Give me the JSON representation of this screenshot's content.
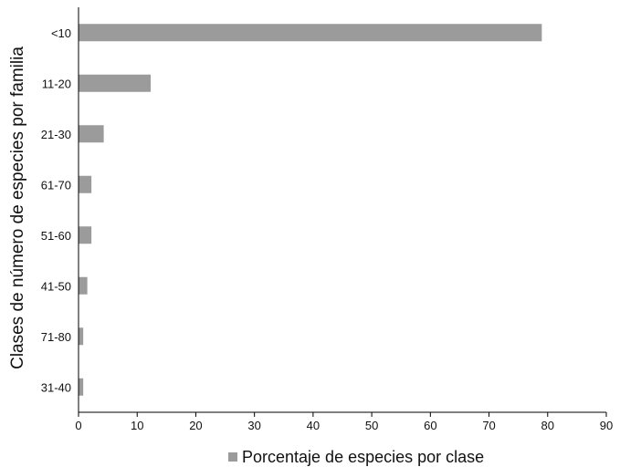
{
  "chart_data": {
    "type": "bar",
    "orientation": "horizontal",
    "categories": [
      "<10",
      "11-20",
      "21-30",
      "61-70",
      "51-60",
      "41-50",
      "71-80",
      "31-40"
    ],
    "series": [
      {
        "name": "Porcentaje de especies por clase",
        "values": [
          79,
          12.3,
          4.3,
          2.2,
          2.2,
          1.5,
          0.8,
          0.8
        ],
        "color": "#9b9b9b"
      }
    ],
    "xlabel": "",
    "ylabel": "Clases de número de especies por familia",
    "xlim": [
      0,
      90
    ],
    "xticks": [
      0,
      10,
      20,
      30,
      40,
      50,
      60,
      70,
      80,
      90
    ],
    "grid": false,
    "legend_position": "bottom"
  }
}
